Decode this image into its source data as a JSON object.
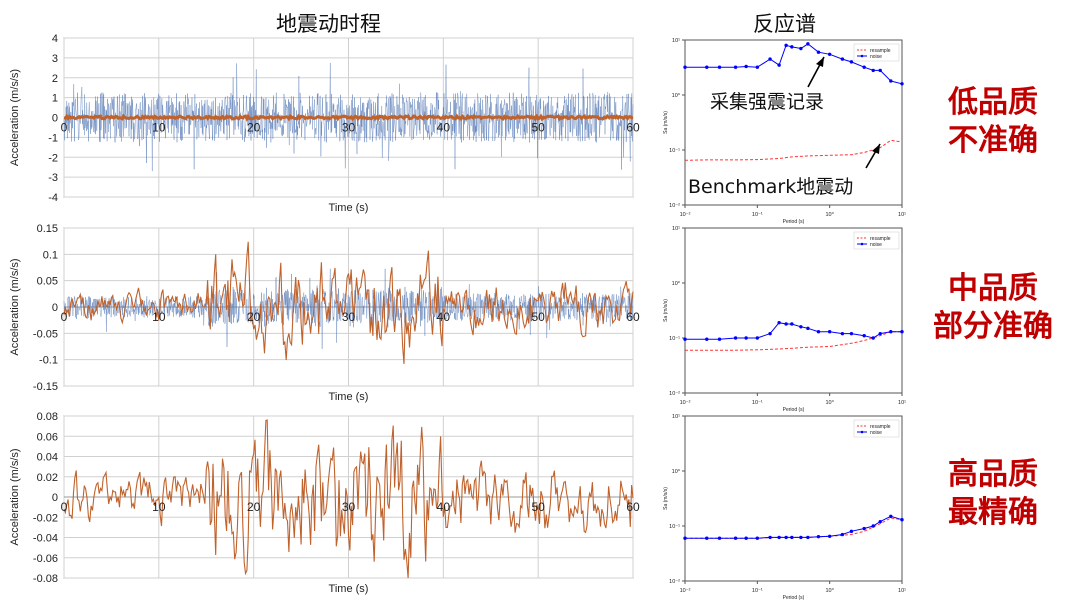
{
  "headings": {
    "time_history": "地震动时程",
    "spectrum": "反应谱"
  },
  "annotations": {
    "collected": "采集强震记录",
    "benchmark": "Benchmark地震动"
  },
  "quality_labels": [
    {
      "line1": "低品质",
      "line2": "不准确"
    },
    {
      "line1": "中品质",
      "line2": "部分准确"
    },
    {
      "line1": "高品质",
      "line2": "最精确"
    }
  ],
  "colors": {
    "noisy_record": "#4f74b3",
    "benchmark_record": "#c0622c",
    "resample": "#ff3333",
    "noise": "#0000ff",
    "quality_text": "#c00000"
  },
  "chart_data": [
    {
      "type": "line",
      "id": "th_low",
      "xlabel": "Time (s)",
      "ylabel": "Acceleration (m/s/s)",
      "xlim": [
        0,
        60
      ],
      "ylim": [
        -4,
        4
      ],
      "xticks": [
        "0",
        "10",
        "20",
        "30",
        "40",
        "50",
        "60"
      ],
      "yticks": [
        "4",
        "3",
        "2",
        "1",
        "0",
        "-1",
        "-2",
        "-3",
        "-4"
      ],
      "series": [
        {
          "name": "",
          "amplitude": 2.8,
          "color": "#4f74b3"
        },
        {
          "name": "",
          "amplitude": 0.07,
          "color": "#c0622c"
        }
      ]
    },
    {
      "type": "line",
      "id": "th_mid",
      "xlabel": "Time (s)",
      "ylabel": "Acceleration (m/s/s)",
      "xlim": [
        0,
        60
      ],
      "ylim": [
        -0.15,
        0.15
      ],
      "xticks": [
        "0",
        "10",
        "20",
        "30",
        "40",
        "50",
        "60"
      ],
      "yticks": [
        "0.15",
        "0.1",
        "0.05",
        "0",
        "-0.05",
        "-0.1",
        "-0.15"
      ],
      "series": [
        {
          "name": "",
          "amplitude": 0.06,
          "color": "#4f74b3"
        },
        {
          "name": "",
          "amplitude": 0.08,
          "color": "#c0622c"
        }
      ]
    },
    {
      "type": "line",
      "id": "th_high",
      "xlabel": "Time (s)",
      "ylabel": "Acceleration (m/s/s)",
      "xlim": [
        0,
        60
      ],
      "ylim": [
        -0.08,
        0.08
      ],
      "xticks": [
        "0",
        "10",
        "20",
        "30",
        "40",
        "50",
        "60"
      ],
      "yticks": [
        "0.08",
        "0.06",
        "0.04",
        "0.02",
        "0",
        "-0.02",
        "-0.04",
        "-0.06",
        "-0.08"
      ],
      "series": [
        {
          "name": "",
          "amplitude": 0.063,
          "color": "#c0622c"
        }
      ]
    },
    {
      "type": "line",
      "id": "sp_low",
      "scale": "log-log",
      "xlabel": "Period (s)",
      "ylabel": "Sa (m/s/s)",
      "xlim": [
        0.01,
        10
      ],
      "ylim": [
        0.01,
        10
      ],
      "xticks": [
        "10⁻²",
        "10⁻¹",
        "10⁰",
        "10¹"
      ],
      "yticks": [
        "10¹",
        "10⁰",
        "10⁻¹",
        "10⁻²"
      ],
      "legend": "top-right",
      "series": [
        {
          "name": "resample",
          "color": "#ff3333",
          "dashed": true,
          "x": [
            0.01,
            0.02,
            0.05,
            0.1,
            0.2,
            0.3,
            0.5,
            1,
            2,
            3,
            5,
            7,
            10
          ],
          "y": [
            0.065,
            0.066,
            0.066,
            0.067,
            0.07,
            0.075,
            0.078,
            0.08,
            0.082,
            0.09,
            0.11,
            0.15,
            0.14
          ]
        },
        {
          "name": "noise",
          "color": "#0000ff",
          "dashed": false,
          "x": [
            0.01,
            0.02,
            0.03,
            0.05,
            0.07,
            0.1,
            0.15,
            0.2,
            0.25,
            0.3,
            0.4,
            0.5,
            0.7,
            1,
            1.5,
            2,
            3,
            4,
            5,
            7,
            10
          ],
          "y": [
            3.2,
            3.2,
            3.2,
            3.2,
            3.3,
            3.2,
            4.5,
            3.5,
            8,
            7.5,
            7,
            8.5,
            6,
            5.5,
            4.5,
            4,
            3.2,
            2.8,
            2.8,
            1.8,
            1.6
          ]
        }
      ]
    },
    {
      "type": "line",
      "id": "sp_mid",
      "scale": "log-log",
      "xlabel": "Period (s)",
      "ylabel": "Sa (m/s/s)",
      "xlim": [
        0.01,
        10
      ],
      "ylim": [
        0.01,
        10
      ],
      "xticks": [
        "10⁻²",
        "10⁻¹",
        "10⁰",
        "10¹"
      ],
      "yticks": [
        "10¹",
        "10⁰",
        "10⁻¹",
        "10⁻²"
      ],
      "legend": "top-right",
      "series": [
        {
          "name": "resample",
          "color": "#ff3333",
          "dashed": true,
          "x": [
            0.01,
            0.02,
            0.05,
            0.1,
            0.2,
            0.3,
            0.5,
            1,
            2,
            3,
            5,
            7,
            10
          ],
          "y": [
            0.06,
            0.06,
            0.06,
            0.061,
            0.063,
            0.065,
            0.068,
            0.07,
            0.08,
            0.09,
            0.11,
            0.13,
            0.13
          ]
        },
        {
          "name": "noise",
          "color": "#0000ff",
          "dashed": false,
          "x": [
            0.01,
            0.02,
            0.03,
            0.05,
            0.07,
            0.1,
            0.15,
            0.2,
            0.25,
            0.3,
            0.4,
            0.5,
            0.7,
            1,
            1.5,
            2,
            3,
            4,
            5,
            7,
            10
          ],
          "y": [
            0.095,
            0.095,
            0.095,
            0.1,
            0.1,
            0.1,
            0.12,
            0.19,
            0.18,
            0.18,
            0.16,
            0.15,
            0.13,
            0.13,
            0.12,
            0.12,
            0.11,
            0.1,
            0.12,
            0.13,
            0.13
          ]
        }
      ]
    },
    {
      "type": "line",
      "id": "sp_high",
      "scale": "log-log",
      "xlabel": "Period (s)",
      "ylabel": "Sa (m/s/s)",
      "xlim": [
        0.01,
        10
      ],
      "ylim": [
        0.01,
        10
      ],
      "xticks": [
        "10⁻²",
        "10⁻¹",
        "10⁰",
        "10¹"
      ],
      "yticks": [
        "10¹",
        "10⁰",
        "10⁻¹",
        "10⁻²"
      ],
      "legend": "top-right",
      "series": [
        {
          "name": "resample",
          "color": "#ff3333",
          "dashed": true,
          "x": [
            0.01,
            0.02,
            0.05,
            0.1,
            0.2,
            0.3,
            0.5,
            1,
            2,
            3,
            5,
            7,
            10
          ],
          "y": [
            0.06,
            0.06,
            0.06,
            0.06,
            0.062,
            0.062,
            0.062,
            0.065,
            0.07,
            0.08,
            0.11,
            0.14,
            0.13
          ]
        },
        {
          "name": "noise",
          "color": "#0000ff",
          "dashed": false,
          "x": [
            0.01,
            0.02,
            0.03,
            0.05,
            0.07,
            0.1,
            0.15,
            0.2,
            0.25,
            0.3,
            0.4,
            0.5,
            0.7,
            1,
            1.5,
            2,
            3,
            4,
            5,
            7,
            10
          ],
          "y": [
            0.06,
            0.06,
            0.06,
            0.06,
            0.06,
            0.06,
            0.062,
            0.062,
            0.062,
            0.062,
            0.062,
            0.062,
            0.064,
            0.065,
            0.07,
            0.08,
            0.09,
            0.1,
            0.12,
            0.15,
            0.13
          ]
        }
      ]
    }
  ]
}
